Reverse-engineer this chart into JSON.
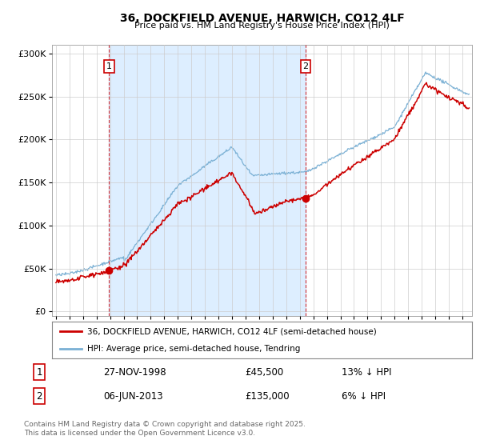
{
  "title": "36, DOCKFIELD AVENUE, HARWICH, CO12 4LF",
  "subtitle": "Price paid vs. HM Land Registry's House Price Index (HPI)",
  "ylabel_ticks": [
    "£0",
    "£50K",
    "£100K",
    "£150K",
    "£200K",
    "£250K",
    "£300K"
  ],
  "ytick_values": [
    0,
    50000,
    100000,
    150000,
    200000,
    250000,
    300000
  ],
  "ylim": [
    -5000,
    310000
  ],
  "xlim_start": 1994.7,
  "xlim_end": 2025.7,
  "red_line_color": "#cc0000",
  "blue_line_color": "#7ab0d4",
  "shade_color": "#ddeeff",
  "purchase1_year": 1998.92,
  "purchase1_price": 45500,
  "purchase2_year": 2013.43,
  "purchase2_price": 135000,
  "legend_red": "36, DOCKFIELD AVENUE, HARWICH, CO12 4LF (semi-detached house)",
  "legend_blue": "HPI: Average price, semi-detached house, Tendring",
  "info1_num": "1",
  "info1_date": "27-NOV-1998",
  "info1_price": "£45,500",
  "info1_hpi": "13% ↓ HPI",
  "info2_num": "2",
  "info2_date": "06-JUN-2013",
  "info2_price": "£135,000",
  "info2_hpi": "6% ↓ HPI",
  "footer": "Contains HM Land Registry data © Crown copyright and database right 2025.\nThis data is licensed under the Open Government Licence v3.0.",
  "background_color": "#ffffff",
  "grid_color": "#cccccc"
}
